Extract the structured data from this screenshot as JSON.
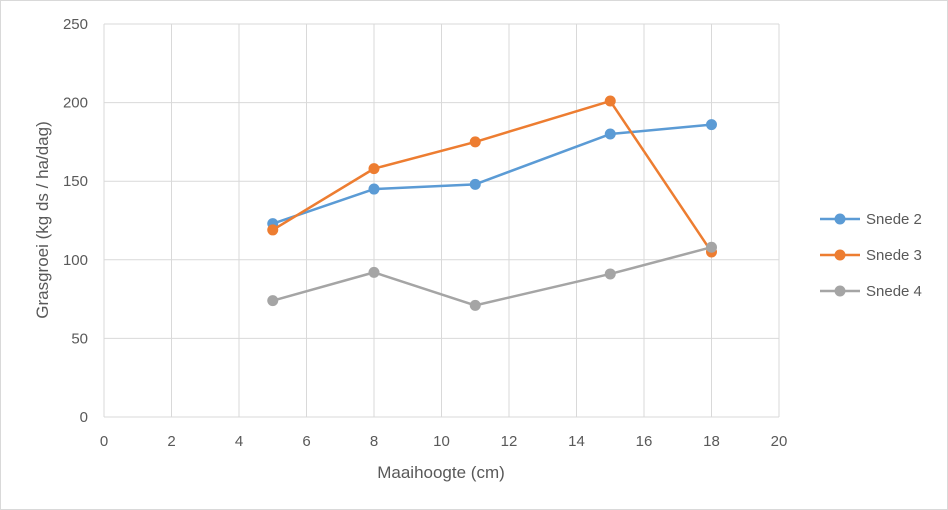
{
  "chart_data": {
    "type": "scatter",
    "title": "",
    "xlabel": "Maaihoogte (cm)",
    "ylabel": "Grasgroei (kg ds / ha/dag)",
    "xlim": [
      0,
      20
    ],
    "ylim": [
      0,
      250
    ],
    "x_ticks": [
      0,
      2,
      4,
      6,
      8,
      10,
      12,
      14,
      16,
      18,
      20
    ],
    "y_ticks": [
      0,
      50,
      100,
      150,
      200,
      250
    ],
    "x_tick_labels": [
      "0",
      "2",
      "4",
      "6",
      "8",
      "10",
      "12",
      "14",
      "16",
      "18",
      "20"
    ],
    "y_tick_labels": [
      "0",
      "50",
      "100",
      "150",
      "200",
      "250"
    ],
    "grid": true,
    "legend_position": "right",
    "series": [
      {
        "name": "Snede 2",
        "color": "#5b9bd5",
        "x": [
          5,
          8,
          11,
          15,
          18
        ],
        "y": [
          123,
          145,
          148,
          180,
          186
        ]
      },
      {
        "name": "Snede 3",
        "color": "#ed7d31",
        "x": [
          5,
          8,
          11,
          15,
          18
        ],
        "y": [
          119,
          158,
          175,
          201,
          105
        ]
      },
      {
        "name": "Snede 4",
        "color": "#a5a5a5",
        "x": [
          5,
          8,
          11,
          15,
          18
        ],
        "y": [
          74,
          92,
          71,
          91,
          108
        ]
      }
    ]
  }
}
